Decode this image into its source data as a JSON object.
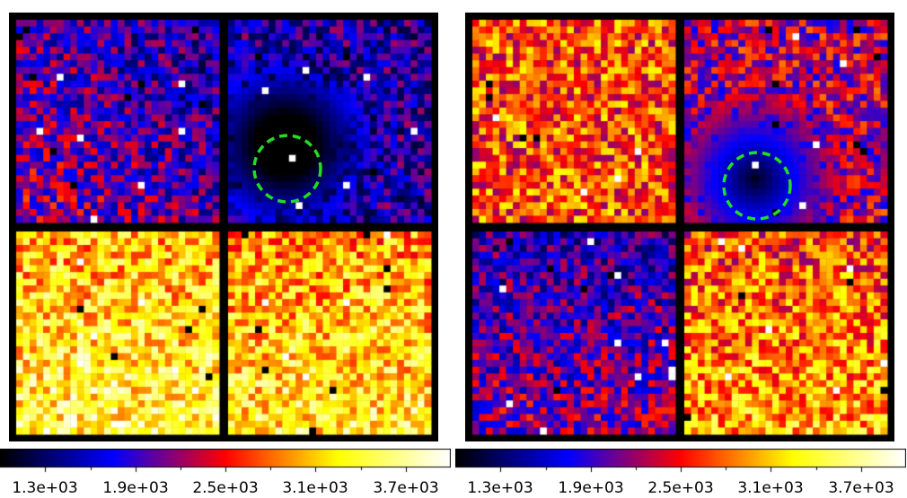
{
  "colormap": {
    "name": "heat",
    "stops": [
      "#000000",
      "#0000ff",
      "#ff0000",
      "#ffff00",
      "#ffffff"
    ],
    "range": [
      1000,
      4000
    ],
    "tick_labels": [
      "1.3e+03",
      "1.9e+03",
      "2.5e+03",
      "3.1e+03",
      "3.7e+03"
    ],
    "tick_values": [
      1300,
      1900,
      2500,
      3100,
      3700
    ]
  },
  "marker_color": "#22dd22",
  "panels": [
    {
      "id": "left",
      "quadrant_levels": {
        "top_left": 1900,
        "top_right": 1700,
        "bottom_left": 3200,
        "bottom_right": 3100
      },
      "marker": "green dashed circle"
    },
    {
      "id": "right",
      "quadrant_levels": {
        "top_left": 2700,
        "top_right": 2300,
        "bottom_left": 1900,
        "bottom_right": 2800
      },
      "marker": "green dashed circle"
    }
  ]
}
